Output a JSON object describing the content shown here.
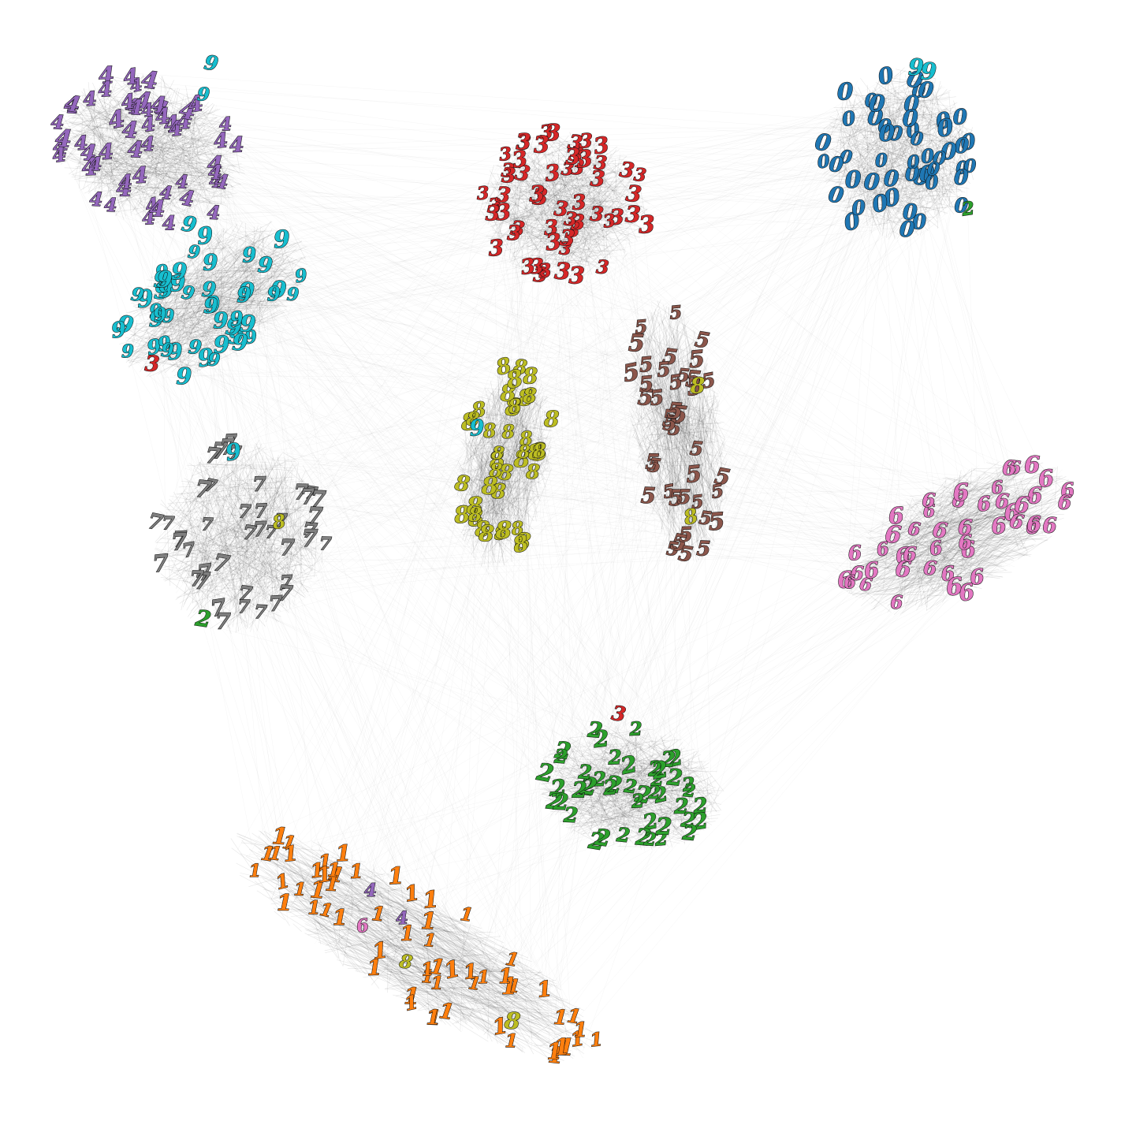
{
  "colors": {
    "0": "#1f77b4",
    "1": "#ff7f0e",
    "2": "#2ca02c",
    "3": "#d62728",
    "4": "#9467bd",
    "5": "#8c564b",
    "6": "#e377c2",
    "7": "#7f7f7f",
    "8": "#bcbd22",
    "9": "#17becf"
  },
  "edge_color": "#000000",
  "clusters": [
    {
      "digit": "4",
      "count": 55,
      "outliers": [
        {
          "digit": "9",
          "count": 3
        }
      ]
    },
    {
      "digit": "9",
      "count": 48,
      "outliers": [
        {
          "digit": "3",
          "count": 1
        }
      ]
    },
    {
      "digit": "3",
      "count": 55,
      "outliers": []
    },
    {
      "digit": "0",
      "count": 50,
      "outliers": [
        {
          "digit": "9",
          "count": 2
        },
        {
          "digit": "2",
          "count": 1
        }
      ]
    },
    {
      "digit": "8",
      "count": 40,
      "outliers": [
        {
          "digit": "9",
          "count": 1
        }
      ]
    },
    {
      "digit": "5",
      "count": 40,
      "outliers": [
        {
          "digit": "8",
          "count": 2
        }
      ]
    },
    {
      "digit": "7",
      "count": 42,
      "outliers": [
        {
          "digit": "9",
          "count": 1
        },
        {
          "digit": "8",
          "count": 1
        },
        {
          "digit": "2",
          "count": 1
        }
      ]
    },
    {
      "digit": "6",
      "count": 45,
      "outliers": []
    },
    {
      "digit": "2",
      "count": 45,
      "outliers": [
        {
          "digit": "3",
          "count": 1
        }
      ]
    },
    {
      "digit": "1",
      "count": 60,
      "outliers": [
        {
          "digit": "4",
          "count": 2
        },
        {
          "digit": "6",
          "count": 1
        },
        {
          "digit": "8",
          "count": 2
        }
      ]
    }
  ]
}
